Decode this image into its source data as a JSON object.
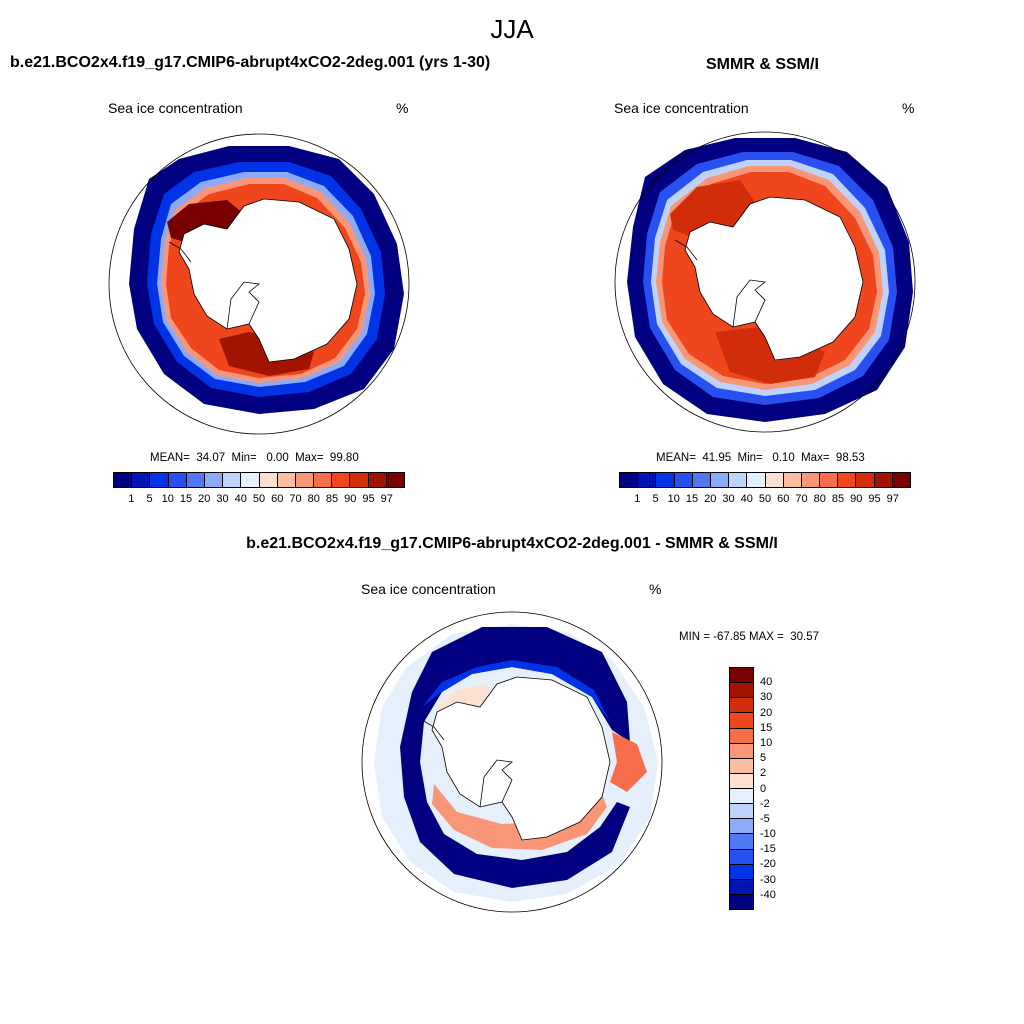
{
  "season": "JJA",
  "panels": [
    {
      "title": "b.e21.BCO2x4.f19_g17.CMIP6-abrupt4xCO2-2deg.001 (yrs 1-30)",
      "subtitle": "Sea ice concentration",
      "units": "%",
      "stats": "MEAN=  34.07  Min=   0.00  Max=  99.80"
    },
    {
      "title": "SMMR & SSM/I",
      "subtitle": "Sea ice concentration",
      "units": "%",
      "stats": "MEAN=  41.95  Min=   0.10  Max=  98.53"
    },
    {
      "title": "b.e21.BCO2x4.f19_g17.CMIP6-abrupt4xCO2-2deg.001 - SMMR & SSM/I",
      "subtitle": "Sea ice concentration",
      "units": "%",
      "stats": "MIN = -67.85 MAX =  30.57"
    }
  ],
  "colorbar_conc": {
    "labels": [
      "1",
      "5",
      "10",
      "15",
      "20",
      "30",
      "40",
      "50",
      "60",
      "70",
      "80",
      "85",
      "90",
      "95",
      "97"
    ],
    "colors": [
      "#000080",
      "#0014b4",
      "#0032e6",
      "#2850f0",
      "#5078f5",
      "#8caaf8",
      "#bed2fa",
      "#e6f0fc",
      "#fde2d2",
      "#fcbea0",
      "#fa9678",
      "#f66e4b",
      "#f0461e",
      "#d22d0a",
      "#a01400",
      "#780000"
    ]
  },
  "colorbar_diff": {
    "labels": [
      "40",
      "30",
      "20",
      "15",
      "10",
      "5",
      "2",
      "0",
      "-2",
      "-5",
      "-10",
      "-15",
      "-20",
      "-30",
      "-40"
    ],
    "colors": [
      "#780000",
      "#a01400",
      "#d22d0a",
      "#f0461e",
      "#f66e4b",
      "#fa9678",
      "#fcbea0",
      "#fde2d2",
      "#e6f0fc",
      "#bed2fa",
      "#8caaf8",
      "#5078f5",
      "#2850f0",
      "#0032e6",
      "#0014b4",
      "#000080"
    ]
  }
}
